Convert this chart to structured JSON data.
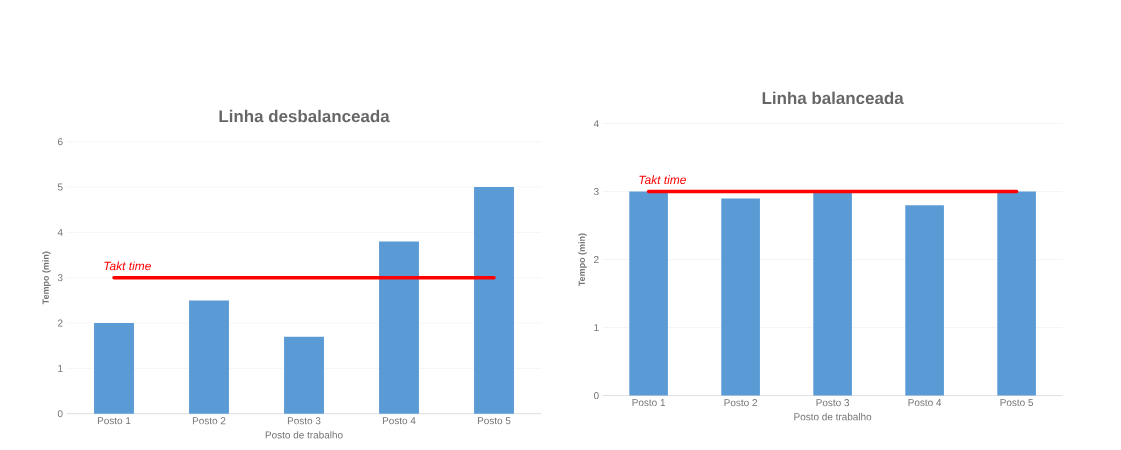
{
  "chart_data": [
    {
      "type": "bar",
      "title": "Linha desbalanceada",
      "xlabel": "Posto de trabalho",
      "ylabel": "Tempo (min)",
      "categories": [
        "Posto 1",
        "Posto 2",
        "Posto 3",
        "Posto 4",
        "Posto 5"
      ],
      "values": [
        2,
        2.5,
        1.7,
        3.8,
        5
      ],
      "color": "#5b9bd5",
      "ylim": [
        0,
        6
      ],
      "yticks": [
        0,
        1,
        2,
        3,
        4,
        5,
        6
      ],
      "grid": "y",
      "ref_lines": [
        {
          "axis": "y",
          "value": 3,
          "label": "Takt time",
          "color": "#ff0000"
        }
      ]
    },
    {
      "type": "bar",
      "title": "Linha balanceada",
      "xlabel": "Posto de trabalho",
      "ylabel": "Tempo (min)",
      "categories": [
        "Posto 1",
        "Posto 2",
        "Posto 3",
        "Posto 4",
        "Posto 5"
      ],
      "values": [
        3,
        2.9,
        3,
        2.8,
        3
      ],
      "color": "#5b9bd5",
      "ylim": [
        0,
        4
      ],
      "yticks": [
        0,
        1,
        2,
        3,
        4
      ],
      "grid": "y",
      "ref_lines": [
        {
          "axis": "y",
          "value": 3,
          "label": "Takt time",
          "color": "#ff0000"
        }
      ]
    }
  ]
}
